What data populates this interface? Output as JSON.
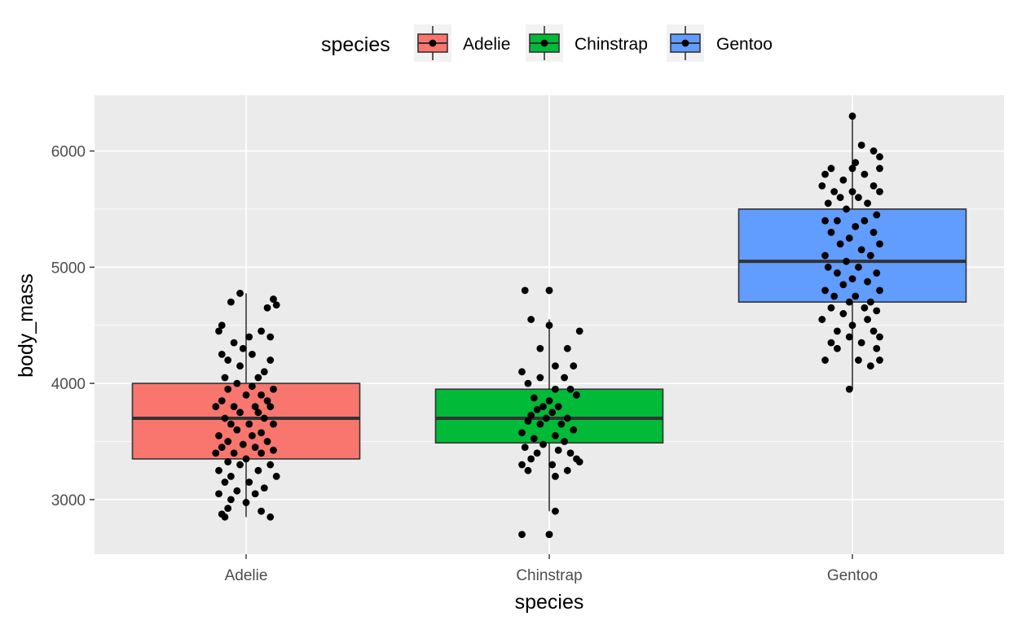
{
  "chart_data": {
    "type": "boxplot",
    "xlabel": "species",
    "ylabel": "body_mass",
    "ylim": [
      2530,
      6480
    ],
    "y_ticks": [
      3000,
      4000,
      5000,
      6000
    ],
    "grid": true,
    "legend": {
      "title": "species",
      "position": "top",
      "entries": [
        "Adelie",
        "Chinstrap",
        "Gentoo"
      ]
    },
    "colors": {
      "Adelie": "#F8766D",
      "Chinstrap": "#00BA38",
      "Gentoo": "#619CFF",
      "panel": "#EBEBEB",
      "grid": "#FFFFFF",
      "box_outline": "#333333",
      "points": "#000000"
    },
    "categories": [
      "Adelie",
      "Chinstrap",
      "Gentoo"
    ],
    "boxes": [
      {
        "name": "Adelie",
        "min": 2850,
        "q1": 3350,
        "median": 3700,
        "q3": 4000,
        "max": 4775
      },
      {
        "name": "Chinstrap",
        "min": 2900,
        "q1": 3488,
        "median": 3700,
        "q3": 3950,
        "max": 4550,
        "outliers": [
          2700,
          4800
        ]
      },
      {
        "name": "Gentoo",
        "min": 3950,
        "q1": 4700,
        "median": 5050,
        "q3": 5500,
        "max": 6300
      }
    ],
    "points": {
      "Adelie": [
        {
          "x": -0.02,
          "y": 4775
        },
        {
          "x": 0.09,
          "y": 4725
        },
        {
          "x": 0.1,
          "y": 4675
        },
        {
          "x": -0.05,
          "y": 4700
        },
        {
          "x": 0.07,
          "y": 4650
        },
        {
          "x": -0.08,
          "y": 4500
        },
        {
          "x": -0.09,
          "y": 4450
        },
        {
          "x": 0.05,
          "y": 4450
        },
        {
          "x": 0.01,
          "y": 4400
        },
        {
          "x": 0.08,
          "y": 4400
        },
        {
          "x": -0.04,
          "y": 4350
        },
        {
          "x": -0.01,
          "y": 4300
        },
        {
          "x": 0.02,
          "y": 4250
        },
        {
          "x": -0.08,
          "y": 4250
        },
        {
          "x": -0.06,
          "y": 4200
        },
        {
          "x": 0.08,
          "y": 4200
        },
        {
          "x": -0.02,
          "y": 4150
        },
        {
          "x": 0.06,
          "y": 4100
        },
        {
          "x": 0.04,
          "y": 4050
        },
        {
          "x": -0.07,
          "y": 4050
        },
        {
          "x": -0.03,
          "y": 4000
        },
        {
          "x": 0.02,
          "y": 3975
        },
        {
          "x": 0.09,
          "y": 3950
        },
        {
          "x": -0.06,
          "y": 3950
        },
        {
          "x": 0.05,
          "y": 3900
        },
        {
          "x": 0.0,
          "y": 3900
        },
        {
          "x": -0.08,
          "y": 3850
        },
        {
          "x": 0.07,
          "y": 3850
        },
        {
          "x": -0.04,
          "y": 3800
        },
        {
          "x": 0.03,
          "y": 3800
        },
        {
          "x": 0.08,
          "y": 3800
        },
        {
          "x": -0.1,
          "y": 3800
        },
        {
          "x": -0.02,
          "y": 3750
        },
        {
          "x": 0.04,
          "y": 3750
        },
        {
          "x": -0.07,
          "y": 3700
        },
        {
          "x": 0.06,
          "y": 3700
        },
        {
          "x": 0.01,
          "y": 3650
        },
        {
          "x": -0.05,
          "y": 3650
        },
        {
          "x": 0.09,
          "y": 3650
        },
        {
          "x": -0.03,
          "y": 3600
        },
        {
          "x": 0.05,
          "y": 3575
        },
        {
          "x": -0.09,
          "y": 3550
        },
        {
          "x": 0.02,
          "y": 3550
        },
        {
          "x": -0.06,
          "y": 3500
        },
        {
          "x": 0.07,
          "y": 3500
        },
        {
          "x": -0.01,
          "y": 3475
        },
        {
          "x": 0.03,
          "y": 3450
        },
        {
          "x": -0.08,
          "y": 3450
        },
        {
          "x": 0.09,
          "y": 3425
        },
        {
          "x": -0.04,
          "y": 3400
        },
        {
          "x": 0.05,
          "y": 3400
        },
        {
          "x": -0.1,
          "y": 3400
        },
        {
          "x": 0.0,
          "y": 3350
        },
        {
          "x": -0.06,
          "y": 3325
        },
        {
          "x": 0.08,
          "y": 3300
        },
        {
          "x": -0.02,
          "y": 3300
        },
        {
          "x": -0.09,
          "y": 3250
        },
        {
          "x": 0.04,
          "y": 3250
        },
        {
          "x": -0.05,
          "y": 3200
        },
        {
          "x": 0.1,
          "y": 3200
        },
        {
          "x": 0.01,
          "y": 3150
        },
        {
          "x": -0.07,
          "y": 3150
        },
        {
          "x": 0.06,
          "y": 3100
        },
        {
          "x": -0.03,
          "y": 3075
        },
        {
          "x": -0.09,
          "y": 3050
        },
        {
          "x": 0.03,
          "y": 3050
        },
        {
          "x": -0.05,
          "y": 3000
        },
        {
          "x": 0.0,
          "y": 2975
        },
        {
          "x": -0.06,
          "y": 2925
        },
        {
          "x": 0.05,
          "y": 2900
        },
        {
          "x": -0.08,
          "y": 2875
        },
        {
          "x": -0.07,
          "y": 2850
        },
        {
          "x": 0.08,
          "y": 2850
        }
      ],
      "Chinstrap": [
        {
          "x": -0.08,
          "y": 4800
        },
        {
          "x": 0.0,
          "y": 4800
        },
        {
          "x": -0.06,
          "y": 4550
        },
        {
          "x": 0.0,
          "y": 4500
        },
        {
          "x": 0.1,
          "y": 4450
        },
        {
          "x": -0.03,
          "y": 4300
        },
        {
          "x": 0.06,
          "y": 4300
        },
        {
          "x": 0.08,
          "y": 4150
        },
        {
          "x": 0.02,
          "y": 4150
        },
        {
          "x": -0.09,
          "y": 4100
        },
        {
          "x": -0.03,
          "y": 4050
        },
        {
          "x": 0.05,
          "y": 4050
        },
        {
          "x": -0.07,
          "y": 4000
        },
        {
          "x": 0.07,
          "y": 3950
        },
        {
          "x": 0.02,
          "y": 3950
        },
        {
          "x": 0.09,
          "y": 3900
        },
        {
          "x": -0.05,
          "y": 3875
        },
        {
          "x": 0.0,
          "y": 3850
        },
        {
          "x": -0.02,
          "y": 3800
        },
        {
          "x": 0.03,
          "y": 3800
        },
        {
          "x": -0.04,
          "y": 3775
        },
        {
          "x": 0.01,
          "y": 3750
        },
        {
          "x": -0.06,
          "y": 3725
        },
        {
          "x": 0.06,
          "y": 3700
        },
        {
          "x": -0.01,
          "y": 3700
        },
        {
          "x": -0.07,
          "y": 3675
        },
        {
          "x": 0.04,
          "y": 3650
        },
        {
          "x": -0.03,
          "y": 3650
        },
        {
          "x": 0.08,
          "y": 3600
        },
        {
          "x": -0.09,
          "y": 3575
        },
        {
          "x": 0.02,
          "y": 3550
        },
        {
          "x": -0.05,
          "y": 3525
        },
        {
          "x": 0.05,
          "y": 3500
        },
        {
          "x": -0.02,
          "y": 3475
        },
        {
          "x": -0.08,
          "y": 3450
        },
        {
          "x": 0.03,
          "y": 3425
        },
        {
          "x": -0.04,
          "y": 3400
        },
        {
          "x": 0.07,
          "y": 3400
        },
        {
          "x": 0.09,
          "y": 3350
        },
        {
          "x": -0.06,
          "y": 3350
        },
        {
          "x": 0.1,
          "y": 3325
        },
        {
          "x": -0.09,
          "y": 3300
        },
        {
          "x": 0.01,
          "y": 3300
        },
        {
          "x": 0.06,
          "y": 3250
        },
        {
          "x": -0.07,
          "y": 3250
        },
        {
          "x": 0.02,
          "y": 3200
        },
        {
          "x": 0.02,
          "y": 2900
        },
        {
          "x": -0.09,
          "y": 2700
        },
        {
          "x": 0.0,
          "y": 2700
        }
      ],
      "Gentoo": [
        {
          "x": 0.0,
          "y": 6300
        },
        {
          "x": 0.03,
          "y": 6050
        },
        {
          "x": 0.07,
          "y": 6000
        },
        {
          "x": 0.09,
          "y": 5950
        },
        {
          "x": 0.01,
          "y": 5900
        },
        {
          "x": -0.07,
          "y": 5850
        },
        {
          "x": 0.09,
          "y": 5850
        },
        {
          "x": 0.0,
          "y": 5850
        },
        {
          "x": -0.09,
          "y": 5800
        },
        {
          "x": 0.04,
          "y": 5800
        },
        {
          "x": -0.03,
          "y": 5750
        },
        {
          "x": 0.07,
          "y": 5700
        },
        {
          "x": -0.1,
          "y": 5700
        },
        {
          "x": 0.0,
          "y": 5650
        },
        {
          "x": -0.06,
          "y": 5650
        },
        {
          "x": 0.09,
          "y": 5650
        },
        {
          "x": -0.04,
          "y": 5600
        },
        {
          "x": 0.02,
          "y": 5600
        },
        {
          "x": -0.08,
          "y": 5550
        },
        {
          "x": 0.05,
          "y": 5550
        },
        {
          "x": -0.02,
          "y": 5500
        },
        {
          "x": 0.08,
          "y": 5450
        },
        {
          "x": -0.09,
          "y": 5400
        },
        {
          "x": 0.04,
          "y": 5400
        },
        {
          "x": -0.05,
          "y": 5400
        },
        {
          "x": 0.01,
          "y": 5350
        },
        {
          "x": 0.07,
          "y": 5300
        },
        {
          "x": -0.07,
          "y": 5300
        },
        {
          "x": -0.01,
          "y": 5250
        },
        {
          "x": 0.09,
          "y": 5200
        },
        {
          "x": -0.04,
          "y": 5200
        },
        {
          "x": 0.03,
          "y": 5150
        },
        {
          "x": -0.09,
          "y": 5100
        },
        {
          "x": 0.06,
          "y": 5100
        },
        {
          "x": -0.02,
          "y": 5050
        },
        {
          "x": 0.02,
          "y": 5000
        },
        {
          "x": -0.08,
          "y": 5000
        },
        {
          "x": 0.08,
          "y": 4950
        },
        {
          "x": -0.05,
          "y": 4950
        },
        {
          "x": 0.0,
          "y": 4900
        },
        {
          "x": 0.05,
          "y": 4875
        },
        {
          "x": -0.03,
          "y": 4850
        },
        {
          "x": 0.09,
          "y": 4800
        },
        {
          "x": -0.09,
          "y": 4800
        },
        {
          "x": 0.01,
          "y": 4750
        },
        {
          "x": -0.06,
          "y": 4750
        },
        {
          "x": 0.06,
          "y": 4700
        },
        {
          "x": -0.01,
          "y": 4700
        },
        {
          "x": 0.04,
          "y": 4650
        },
        {
          "x": -0.07,
          "y": 4650
        },
        {
          "x": 0.08,
          "y": 4625
        },
        {
          "x": -0.03,
          "y": 4600
        },
        {
          "x": -0.1,
          "y": 4550
        },
        {
          "x": 0.05,
          "y": 4550
        },
        {
          "x": 0.0,
          "y": 4500
        },
        {
          "x": -0.05,
          "y": 4450
        },
        {
          "x": 0.07,
          "y": 4450
        },
        {
          "x": -0.01,
          "y": 4400
        },
        {
          "x": 0.09,
          "y": 4400
        },
        {
          "x": -0.07,
          "y": 4350
        },
        {
          "x": 0.03,
          "y": 4350
        },
        {
          "x": 0.08,
          "y": 4300
        },
        {
          "x": -0.05,
          "y": 4300
        },
        {
          "x": -0.09,
          "y": 4200
        },
        {
          "x": 0.02,
          "y": 4200
        },
        {
          "x": 0.09,
          "y": 4200
        },
        {
          "x": 0.06,
          "y": 4150
        },
        {
          "x": -0.01,
          "y": 3950
        }
      ]
    }
  }
}
